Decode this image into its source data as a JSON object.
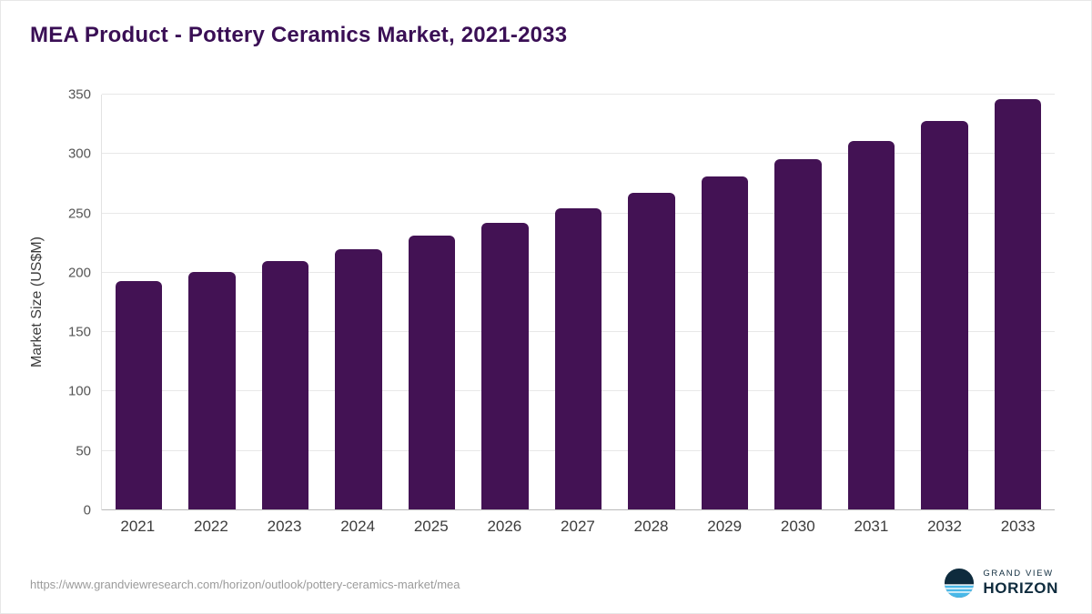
{
  "title": "MEA Product - Pottery Ceramics Market, 2021-2033",
  "footer": {
    "source_url": "https://www.grandviewresearch.com/horizon/outlook/pottery-ceramics-market/mea",
    "logo_top": "GRAND VIEW",
    "logo_bottom": "HORIZON"
  },
  "colors": {
    "bar": "#431254",
    "title": "#3a0f55",
    "grid": "#e8e8e8",
    "axis": "#b9b9b9",
    "url_text": "#9b9b9b",
    "logo_navy": "#0e2b3d",
    "logo_blue": "#49b8e8"
  },
  "chart_data": {
    "type": "bar",
    "title": "MEA Product - Pottery Ceramics Market, 2021-2033",
    "categories": [
      "2021",
      "2022",
      "2023",
      "2024",
      "2025",
      "2026",
      "2027",
      "2028",
      "2029",
      "2030",
      "2031",
      "2032",
      "2033"
    ],
    "values": [
      193,
      201,
      210,
      220,
      231,
      242,
      254,
      267,
      281,
      296,
      311,
      328,
      346
    ],
    "xlabel": "",
    "ylabel": "Market Size (US$M)",
    "ylim": [
      0,
      350
    ],
    "ytick_step": 50,
    "yticks": [
      0,
      50,
      100,
      150,
      200,
      250,
      300,
      350
    ],
    "grid": "horizontal",
    "legend": "none"
  }
}
